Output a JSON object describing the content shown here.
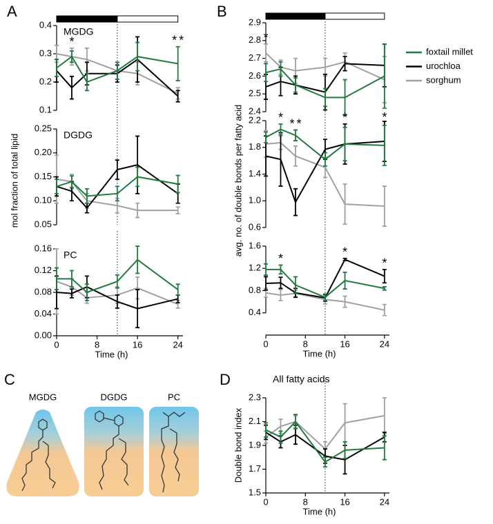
{
  "panels": [
    "A",
    "B",
    "C",
    "D"
  ],
  "lipid_labels": [
    "MGDG",
    "DGDG",
    "PC"
  ],
  "chart_data": [
    {
      "type": "line",
      "title": "MGDG",
      "x": [
        0,
        3,
        6,
        12,
        16,
        24
      ],
      "xlim": [
        0,
        25
      ],
      "photoperiod": {
        "dark": [
          0,
          12
        ],
        "light": [
          12,
          24
        ]
      },
      "vline": 12,
      "ylim": [
        0.1,
        0.4
      ],
      "yticks": [
        0.1,
        0.2,
        0.3,
        0.4
      ],
      "series": [
        {
          "name": "foxtail millet",
          "color": "#1f7a3e",
          "values": [
            0.25,
            0.29,
            0.2,
            0.24,
            0.29,
            0.265
          ],
          "errors": [
            0.03,
            0.02,
            0.03,
            0.03,
            0.05,
            0.06
          ]
        },
        {
          "name": "urochloa",
          "color": "#000000",
          "values": [
            0.24,
            0.18,
            0.23,
            0.23,
            0.28,
            0.15
          ],
          "errors": [
            0.04,
            0.04,
            0.04,
            0.03,
            0.08,
            0.02
          ]
        },
        {
          "name": "sorghum",
          "color": "#a0a0a0",
          "values": [
            0.3,
            0.29,
            0.28,
            0.24,
            0.23,
            0.16
          ],
          "errors": [
            0.03,
            0.03,
            0.04,
            0.03,
            0.04,
            0.02
          ]
        }
      ],
      "annotations": [
        {
          "text": "*",
          "x": 3,
          "color": "#000000"
        },
        {
          "text": "*",
          "x": 24,
          "color": "#000000"
        },
        {
          "text": "*",
          "x": 24,
          "color": "#a0a0a0"
        }
      ]
    },
    {
      "type": "line",
      "title": "DGDG",
      "ylabel": "mol fraction of total lipid",
      "x": [
        0,
        3,
        6,
        12,
        16,
        24
      ],
      "xlim": [
        0,
        25
      ],
      "vline": 12,
      "ylim": [
        0.05,
        0.25
      ],
      "yticks": [
        0.05,
        {
          "value": 0.1,
          "label": "0.10"
        },
        0.15,
        {
          "value": 0.2,
          "label": "0.20"
        },
        0.25
      ],
      "series": [
        {
          "color": "#1f7a3e",
          "values": [
            0.13,
            0.14,
            0.11,
            0.115,
            0.15,
            0.135
          ],
          "errors": [
            0.015,
            0.012,
            0.015,
            0.015,
            0.02,
            0.018
          ]
        },
        {
          "color": "#000000",
          "values": [
            0.13,
            0.12,
            0.085,
            0.165,
            0.175,
            0.115
          ],
          "errors": [
            0.02,
            0.02,
            0.01,
            0.02,
            0.06,
            0.02
          ]
        },
        {
          "color": "#a0a0a0",
          "values": [
            0.145,
            0.14,
            0.1,
            0.09,
            0.08,
            0.08
          ],
          "errors": [
            0.05,
            0.015,
            0.015,
            0.015,
            0.015,
            0.007
          ]
        }
      ]
    },
    {
      "type": "line",
      "title": "PC",
      "xlabel": "Time (h)",
      "x": [
        0,
        3,
        6,
        12,
        16,
        24
      ],
      "xlim": [
        0,
        25
      ],
      "xticks": [
        0,
        8,
        16,
        24
      ],
      "vline": 12,
      "ylim": [
        0,
        0.16
      ],
      "yticks": [
        {
          "value": 0,
          "label": "0.00"
        },
        0.04,
        0.08,
        0.12,
        0.16
      ],
      "series": [
        {
          "color": "#1f7a3e",
          "values": [
            0.105,
            0.105,
            0.08,
            0.1,
            0.14,
            0.085
          ],
          "errors": [
            0.02,
            0.015,
            0.015,
            0.012,
            0.025,
            0.01
          ]
        },
        {
          "color": "#000000",
          "values": [
            0.08,
            0.078,
            0.09,
            0.063,
            0.05,
            0.068
          ],
          "errors": [
            0.03,
            0.008,
            0.02,
            0.012,
            0.035,
            0.007
          ]
        },
        {
          "color": "#a0a0a0",
          "values": [
            0.1,
            0.09,
            0.07,
            0.075,
            0.088,
            0.058
          ],
          "errors": [
            0.06,
            0.015,
            0.01,
            0.015,
            0.02,
            0.007
          ]
        }
      ]
    },
    {
      "type": "line",
      "x": [
        0,
        3,
        6,
        12,
        16,
        24
      ],
      "xlim": [
        0,
        25
      ],
      "photoperiod": {
        "dark": [
          0,
          12
        ],
        "light": [
          12,
          24
        ]
      },
      "vline": 12,
      "ylim": [
        2.4,
        2.9
      ],
      "yticks": [
        2.4,
        2.5,
        2.6,
        2.7,
        2.8,
        2.9
      ],
      "series": [
        {
          "color": "#1f7a3e",
          "values": [
            2.62,
            2.64,
            2.55,
            2.48,
            2.48,
            2.6
          ],
          "errors": [
            0.05,
            0.04,
            0.04,
            0.05,
            0.1,
            0.18
          ]
        },
        {
          "color": "#000000",
          "values": [
            2.54,
            2.57,
            2.55,
            2.51,
            2.67,
            2.66
          ],
          "errors": [
            0.07,
            0.08,
            0.05,
            0.1,
            0.04,
            0.12
          ]
        },
        {
          "color": "#a0a0a0",
          "values": [
            2.73,
            2.65,
            2.63,
            2.65,
            2.68,
            2.58
          ],
          "errors": [
            0.05,
            0.04,
            0.07,
            0.05,
            0.05,
            0.13
          ]
        }
      ],
      "annotations": [
        {
          "text": "*",
          "x": 0,
          "color": "#a0a0a0"
        }
      ]
    },
    {
      "type": "line",
      "ylabel": "avg. no. of double bonds per fatty acid",
      "x": [
        0,
        3,
        6,
        12,
        16,
        24
      ],
      "xlim": [
        0,
        25
      ],
      "vline": 12,
      "ylim": [
        0.6,
        2.2
      ],
      "yticks": [
        0.6,
        {
          "value": 1,
          "label": "1.0"
        },
        1.4,
        1.8,
        2.2
      ],
      "series": [
        {
          "color": "#1f7a3e",
          "values": [
            1.95,
            2.07,
            1.98,
            1.62,
            1.85,
            1.83
          ],
          "errors": [
            0.08,
            0.08,
            0.08,
            0.1,
            0.25,
            0.3
          ]
        },
        {
          "color": "#000000",
          "values": [
            1.67,
            1.62,
            0.98,
            1.77,
            1.85,
            1.89
          ],
          "errors": [
            0.3,
            0.4,
            0.2,
            0.15,
            0.3,
            0.3
          ]
        },
        {
          "color": "#a0a0a0",
          "values": [
            1.85,
            1.87,
            1.67,
            1.5,
            0.95,
            0.92
          ],
          "errors": [
            0.2,
            0.1,
            0.15,
            0.15,
            0.3,
            0.3
          ]
        }
      ],
      "annotations": [
        {
          "text": "*",
          "x": 3,
          "color": "#000000"
        },
        {
          "text": "*",
          "x": 6,
          "color": "#000000"
        },
        {
          "text": "*",
          "x": 6,
          "color": "#a0a0a0"
        },
        {
          "text": "*",
          "x": 16,
          "color": "#a0a0a0"
        },
        {
          "text": "*",
          "x": 24,
          "color": "#a0a0a0"
        }
      ]
    },
    {
      "type": "line",
      "xlabel": "Time (h)",
      "x": [
        0,
        3,
        6,
        12,
        16,
        24
      ],
      "xlim": [
        0,
        25
      ],
      "xticks": [
        0,
        8,
        16,
        24
      ],
      "vline": 12,
      "ylim": [
        0,
        1.6
      ],
      "yticks": [
        0.4,
        0.8,
        1.2,
        1.6
      ],
      "series": [
        {
          "color": "#1f7a3e",
          "values": [
            1.18,
            1.18,
            0.9,
            0.68,
            0.98,
            0.84
          ],
          "errors": [
            0.1,
            0.08,
            0.15,
            0.06,
            0.15,
            0.03
          ]
        },
        {
          "color": "#000000",
          "values": [
            0.93,
            0.94,
            0.76,
            0.67,
            1.36,
            1.06
          ],
          "errors": [
            0.12,
            0.1,
            0.08,
            0.06,
            0.02,
            0.12
          ]
        },
        {
          "color": "#a0a0a0",
          "values": [
            0.76,
            0.72,
            0.75,
            0.64,
            0.6,
            0.45
          ],
          "errors": [
            0.08,
            0.1,
            0.06,
            0.08,
            0.1,
            0.1
          ]
        }
      ],
      "annotations": [
        {
          "text": "*",
          "x": 3,
          "color": "#a0a0a0"
        },
        {
          "text": "*",
          "x": 16,
          "color": "#a0a0a0"
        },
        {
          "text": "*",
          "x": 24,
          "color": "#a0a0a0"
        }
      ]
    },
    {
      "type": "line",
      "title": "All fatty acids",
      "ylabel": "Double bond index",
      "xlabel": "Time (h)",
      "x": [
        0,
        3,
        6,
        12,
        16,
        24
      ],
      "xlim": [
        0,
        25
      ],
      "xticks": [
        0,
        8,
        16,
        24
      ],
      "vline": 12,
      "ylim": [
        1.5,
        2.3
      ],
      "yticks": [
        1.5,
        1.7,
        1.9,
        2.1,
        2.3
      ],
      "series": [
        {
          "color": "#1f7a3e",
          "values": [
            2.03,
            1.97,
            2.1,
            1.76,
            1.86,
            1.88
          ],
          "errors": [
            0.06,
            0.05,
            0.06,
            0.04,
            0.07,
            0.1
          ]
        },
        {
          "color": "#000000",
          "values": [
            2.01,
            1.93,
            1.99,
            1.81,
            1.78,
            1.97
          ],
          "errors": [
            0.06,
            0.05,
            0.08,
            0.06,
            0.12,
            0.04
          ]
        },
        {
          "color": "#a0a0a0",
          "values": [
            1.97,
            2.06,
            2.1,
            1.87,
            2.09,
            2.15
          ],
          "errors": [
            0.05,
            0.06,
            0.05,
            0.06,
            0.16,
            0.15
          ]
        }
      ]
    }
  ]
}
